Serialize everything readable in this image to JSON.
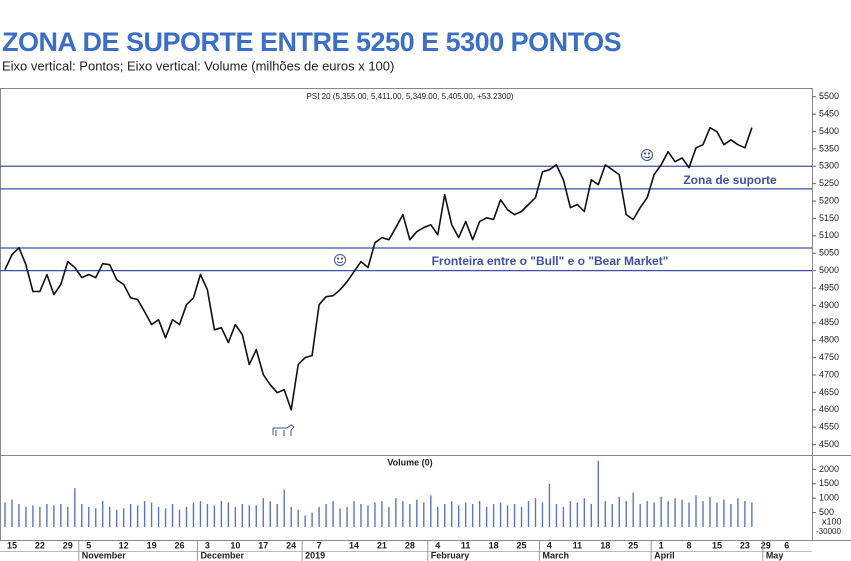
{
  "header": {
    "title": "ZONA DE SUPORTE ENTRE 5250 E 5300 PONTOS",
    "subtitle": "Eixo vertical: Pontos; Eixo vertical: Volume (milhões de euros x 100)"
  },
  "chart_data": [
    {
      "type": "line",
      "title": "PSI 20 (5,355.00, 5,411.00, 5,349.00, 5,405.00, +53.2300)",
      "color": "#111111",
      "values": [
        5003,
        5046,
        5066,
        5017,
        4940,
        4940,
        4989,
        4931,
        4960,
        5026,
        5009,
        4980,
        4989,
        4980,
        5020,
        5017,
        4974,
        4960,
        4922,
        4917,
        4882,
        4845,
        4859,
        4807,
        4859,
        4845,
        4902,
        4922,
        4989,
        4945,
        4830,
        4836,
        4793,
        4845,
        4816,
        4730,
        4773,
        4701,
        4672,
        4649,
        4658,
        4600,
        4730,
        4750,
        4756,
        4902,
        4925,
        4928,
        4945,
        4968,
        4997,
        5026,
        5009,
        5080,
        5095,
        5089,
        5124,
        5161,
        5089,
        5112,
        5124,
        5132,
        5103,
        5218,
        5132,
        5095,
        5141,
        5089,
        5141,
        5152,
        5147,
        5204,
        5175,
        5161,
        5170,
        5190,
        5210,
        5284,
        5290,
        5304,
        5261,
        5181,
        5190,
        5170,
        5261,
        5247,
        5304,
        5290,
        5276,
        5161,
        5147,
        5181,
        5210,
        5276,
        5304,
        5342,
        5313,
        5324,
        5296,
        5353,
        5362,
        5411,
        5399,
        5362,
        5376,
        5362,
        5353,
        5411,
        null,
        null,
        null,
        null,
        null,
        null
      ],
      "ylim": [
        4470,
        5525
      ],
      "yticks": [
        4500,
        4550,
        4600,
        4650,
        4700,
        4750,
        4800,
        4850,
        4900,
        4950,
        5000,
        5050,
        5100,
        5150,
        5200,
        5250,
        5300,
        5350,
        5400,
        5450,
        5500
      ],
      "reference_lines": [
        5300,
        5235,
        5065,
        5000
      ],
      "reference_color": "#3f51a3",
      "annotations": [
        "Zona de suporte",
        "Fronteira entre o \"Bull\" e o \"Bear Market\""
      ]
    },
    {
      "type": "bar",
      "title": "Volume (0)",
      "color": "#6073c0",
      "categories": [
        null,
        "15",
        null,
        null,
        null,
        "22",
        null,
        null,
        null,
        "29",
        null,
        null,
        "5",
        null,
        null,
        null,
        null,
        "12",
        null,
        null,
        null,
        "19",
        null,
        null,
        null,
        "26",
        null,
        null,
        null,
        "3",
        null,
        null,
        null,
        "10",
        null,
        null,
        null,
        "17",
        null,
        null,
        null,
        "24",
        null,
        null,
        null,
        "7",
        null,
        null,
        null,
        null,
        "14",
        null,
        null,
        null,
        "21",
        null,
        null,
        null,
        "28",
        null,
        null,
        null,
        "4",
        null,
        null,
        null,
        "11",
        null,
        null,
        null,
        "18",
        null,
        null,
        null,
        "25",
        null,
        null,
        null,
        "4",
        null,
        null,
        null,
        "11",
        null,
        null,
        null,
        "18",
        null,
        null,
        null,
        "25",
        null,
        null,
        null,
        "1",
        null,
        null,
        null,
        "8",
        null,
        null,
        null,
        "15",
        null,
        null,
        null,
        "23",
        null,
        null,
        "29",
        null,
        null,
        "6",
        null
      ],
      "months": [
        null,
        null,
        null,
        null,
        null,
        null,
        null,
        null,
        null,
        null,
        null,
        "November",
        null,
        null,
        null,
        null,
        null,
        null,
        null,
        null,
        null,
        null,
        null,
        null,
        null,
        null,
        null,
        null,
        "December",
        null,
        null,
        null,
        null,
        null,
        null,
        null,
        null,
        null,
        null,
        null,
        null,
        null,
        null,
        "2019",
        null,
        null,
        null,
        null,
        null,
        null,
        null,
        null,
        null,
        null,
        null,
        null,
        null,
        null,
        null,
        null,
        null,
        "February",
        null,
        null,
        null,
        null,
        null,
        null,
        null,
        null,
        null,
        null,
        null,
        null,
        null,
        null,
        null,
        "March",
        null,
        null,
        null,
        null,
        null,
        null,
        null,
        null,
        null,
        null,
        null,
        null,
        null,
        null,
        null,
        "April",
        null,
        null,
        null,
        null,
        null,
        null,
        null,
        null,
        null,
        null,
        null,
        null,
        null,
        null,
        null,
        "May",
        null,
        null,
        null,
        null
      ],
      "values": [
        850,
        950,
        800,
        700,
        750,
        700,
        800,
        750,
        800,
        700,
        1350,
        800,
        700,
        650,
        900,
        700,
        600,
        650,
        800,
        750,
        900,
        850,
        700,
        650,
        800,
        600,
        700,
        850,
        900,
        800,
        750,
        900,
        850,
        700,
        800,
        750,
        750,
        1000,
        900,
        800,
        1300,
        700,
        600,
        400,
        500,
        700,
        800,
        900,
        650,
        700,
        900,
        800,
        750,
        850,
        900,
        700,
        1000,
        900,
        800,
        950,
        850,
        1100,
        700,
        800,
        900,
        750,
        850,
        800,
        900,
        700,
        800,
        850,
        750,
        800,
        700,
        900,
        1000,
        850,
        1500,
        800,
        700,
        900,
        850,
        1000,
        800,
        2300,
        900,
        800,
        1050,
        900,
        1200,
        800,
        900,
        850,
        1050,
        900,
        1000,
        950,
        850,
        1100,
        900,
        1050,
        850,
        950,
        800,
        1000,
        900,
        850,
        null,
        null,
        null,
        null,
        null,
        null
      ],
      "ylim": [
        0,
        2500
      ],
      "yticks": [
        500,
        1000,
        1500,
        2000
      ],
      "unit_labels": [
        "x100",
        "-30000"
      ]
    }
  ]
}
